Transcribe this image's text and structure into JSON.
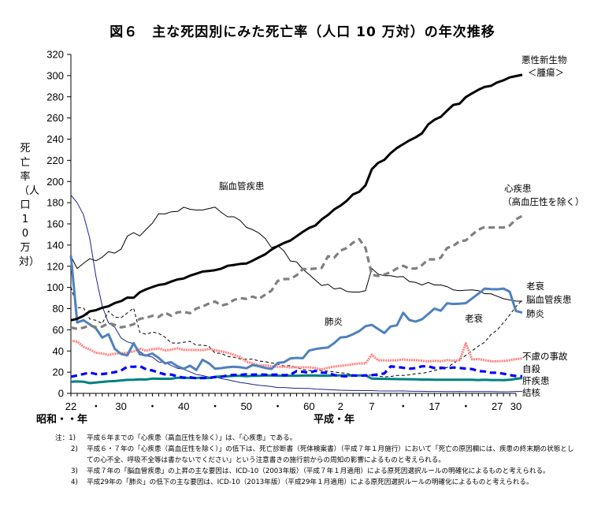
{
  "chart_data": {
    "type": "line",
    "title": "図６　主な死因別にみた死亡率（人口 10 万対）の年次推移",
    "ylabel": "死亡率（人口10万対）",
    "xlabel_showa": "昭和・・年",
    "xlabel_heisei": "平成・年",
    "ylim": [
      0,
      320
    ],
    "yticks": [
      0,
      20,
      40,
      60,
      80,
      100,
      120,
      140,
      160,
      180,
      200,
      220,
      240,
      260,
      280,
      300,
      320
    ],
    "xlim": [
      1947,
      2018
    ],
    "xtick_labels": [
      {
        "year": 1947,
        "label": "22"
      },
      {
        "year": 1951,
        "label": "・"
      },
      {
        "year": 1955,
        "label": "30"
      },
      {
        "year": 1960,
        "label": "・"
      },
      {
        "year": 1965,
        "label": "40"
      },
      {
        "year": 1970,
        "label": "・"
      },
      {
        "year": 1975,
        "label": "50"
      },
      {
        "year": 1980,
        "label": "・"
      },
      {
        "year": 1985,
        "label": "60"
      },
      {
        "year": 1990,
        "label": "2"
      },
      {
        "year": 1995,
        "label": "7"
      },
      {
        "year": 2000,
        "label": "・"
      },
      {
        "year": 2005,
        "label": "17"
      },
      {
        "year": 2010,
        "label": "・"
      },
      {
        "year": 2015,
        "label": "27"
      },
      {
        "year": 2018,
        "label": "30"
      }
    ],
    "grid": false,
    "annotations": [
      {
        "text": "脳血管疾患",
        "near": "1975, 195"
      },
      {
        "text": "肺炎",
        "near": "1989, 68"
      },
      {
        "text": "老衰",
        "near": "2010, 68"
      }
    ],
    "series": [
      {
        "name": "悪性新生物＜腫瘍＞",
        "label_lines": [
          "悪性新生物",
          "＜腫瘍＞"
        ],
        "color": "#000000",
        "style": "solid-thick",
        "x0": 1947,
        "values": [
          69.0,
          70.4,
          73.1,
          77.4,
          78.5,
          80.8,
          82.2,
          85.3,
          87.1,
          90.4,
          90.3,
          95.5,
          98.2,
          100.4,
          102.3,
          103.2,
          105.5,
          107.5,
          108.4,
          111.1,
          113.0,
          115.0,
          115.6,
          116.3,
          117.7,
          120.4,
          121.2,
          122.2,
          122.6,
          125.3,
          128.4,
          131.3,
          135.7,
          139.1,
          142.0,
          144.2,
          148.3,
          152.5,
          156.1,
          158.5,
          164.2,
          168.4,
          173.6,
          177.2,
          181.7,
          187.8,
          190.4,
          196.4,
          211.6,
          217.5,
          220.4,
          226.7,
          231.6,
          235.2,
          238.8,
          241.7,
          245.4,
          253.9,
          258.3,
          261.0,
          266.9,
          272.3,
          273.5,
          279.7,
          283.2,
          286.6,
          289.3,
          290.3,
          293.5,
          295.5,
          298.3,
          299.5,
          300.7
        ]
      },
      {
        "name": "心疾患（高血圧性を除く）",
        "label_lines": [
          "心疾患",
          "（高血圧性を除く）"
        ],
        "color": "#808080",
        "style": "dashed-thick",
        "x0": 1947,
        "values": [
          62.2,
          60.9,
          62.0,
          64.2,
          62.5,
          63.0,
          66.3,
          64.6,
          62.3,
          63.4,
          65.2,
          70.4,
          71.4,
          73.2,
          72.1,
          76.2,
          73.2,
          76.5,
          77.0,
          75.7,
          80.1,
          81.9,
          84.8,
          86.7,
          82.8,
          84.4,
          88.2,
          89.9,
          89.2,
          91.3,
          89.2,
          93.2,
          97.0,
          106.2,
          107.9,
          108.0,
          111.4,
          117.3,
          117.3,
          117.9,
          118.4,
          129.4,
          128.1,
          134.8,
          137.2,
          142.2,
          145.6,
          137.2,
          112.0,
          110.8,
          112.2,
          114.3,
          117.9,
          120.4,
          117.8,
          117.8,
          121.0,
          126.5,
          126.5,
          128.1,
          137.2,
          139.2,
          143.7,
          144.4,
          149.8,
          154.5,
          157.0,
          156.5,
          156.7,
          156.5,
          158.4,
          164.3,
          167.6
        ]
      },
      {
        "name": "脳血管疾患",
        "label_lines": [
          "脳血管疾患"
        ],
        "color": "#000000",
        "style": "solid-thin",
        "x0": 1947,
        "values": [
          129.4,
          117.9,
          122.7,
          127.1,
          125.2,
          128.5,
          133.7,
          132.4,
          136.1,
          148.4,
          151.7,
          148.6,
          154.8,
          160.7,
          169.6,
          169.4,
          171.4,
          171.7,
          175.8,
          173.8,
          173.1,
          173.1,
          174.4,
          175.8,
          170.8,
          166.7,
          166.7,
          163.2,
          156.7,
          154.5,
          151.4,
          146.2,
          137.7,
          139.5,
          134.3,
          125.0,
          124.1,
          117.2,
          112.2,
          106.9,
          101.7,
          103.0,
          98.5,
          99.4,
          96.2,
          95.6,
          95.6,
          96.9,
          117.9,
          112.6,
          111.0,
          111.0,
          110.0,
          110.2,
          105.5,
          104.7,
          102.3,
          104.7,
          102.3,
          102.3,
          100.8,
          97.7,
          97.0,
          97.4,
          97.7,
          97.0,
          94.1,
          94.1,
          91.7,
          89.4,
          88.2,
          87.1,
          87.1
        ]
      },
      {
        "name": "肺炎",
        "label_lines": [
          "肺炎"
        ],
        "color": "#4F81BD",
        "style": "solid-thick",
        "x0": 1947,
        "values": [
          130.1,
          66.9,
          69.0,
          65.1,
          61.3,
          52.6,
          55.9,
          42.0,
          37.2,
          35.9,
          47.5,
          37.0,
          35.7,
          37.6,
          33.5,
          28.3,
          29.4,
          25.5,
          23.2,
          26.1,
          22.0,
          31.7,
          28.4,
          23.3,
          23.8,
          24.6,
          25.1,
          24.6,
          23.7,
          26.8,
          25.6,
          24.0,
          23.1,
          28.7,
          29.4,
          33.0,
          33.5,
          33.2,
          40.4,
          41.8,
          42.7,
          43.2,
          47.5,
          52.8,
          53.3,
          55.8,
          58.8,
          63.4,
          64.7,
          60.9,
          56.9,
          63.1,
          64.2,
          76.1,
          69.2,
          67.8,
          69.9,
          74.9,
          80.0,
          78.0,
          85.0,
          84.4,
          84.6,
          85.1,
          89.6,
          94.1,
          98.9,
          98.4,
          98.2,
          98.9,
          96.0,
          77.7,
          76.2
        ]
      },
      {
        "name": "老衰",
        "label_lines": [
          "老衰"
        ],
        "color": "#000000",
        "style": "dashed-thin",
        "x0": 1947,
        "values": [
          100.3,
          81.0,
          80.8,
          70.2,
          68.9,
          66.0,
          77.6,
          72.0,
          71.4,
          75.9,
          80.6,
          57.5,
          55.8,
          57.9,
          56.6,
          53.1,
          47.6,
          47.3,
          48.3,
          49.1,
          45.4,
          45.6,
          44.4,
          38.1,
          37.7,
          34.9,
          34.0,
          32.6,
          32.2,
          32.3,
          30.5,
          29.9,
          28.7,
          27.6,
          25.9,
          26.3,
          24.3,
          22.5,
          21.6,
          21.5,
          21.6,
          20.9,
          20.2,
          19.4,
          18.8,
          17.5,
          17.0,
          17.4,
          17.2,
          16.3,
          15.6,
          15.9,
          16.9,
          16.9,
          17.5,
          18.6,
          18.9,
          20.1,
          21.5,
          23.1,
          24.3,
          28.3,
          32.0,
          35.9,
          40.2,
          44.6,
          48.2,
          55.5,
          59.8,
          66.7,
          74.0,
          81.9,
          88.2
        ]
      },
      {
        "name": "不慮の事故",
        "label_lines": [
          "不慮の事故"
        ],
        "color": "#FF8080",
        "style": "dotted-thick",
        "x0": 1947,
        "values": [
          49.6,
          49.0,
          44.0,
          41.4,
          38.3,
          37.6,
          36.4,
          37.4,
          37.9,
          38.3,
          39.6,
          42.2,
          40.1,
          41.7,
          42.4,
          40.5,
          41.2,
          42.6,
          40.9,
          41.0,
          40.9,
          40.8,
          41.9,
          40.8,
          39.6,
          38.4,
          36.3,
          34.2,
          29.9,
          28.2,
          26.4,
          26.4,
          25.6,
          25.1,
          25.1,
          24.5,
          24.6,
          24.5,
          24.6,
          23.9,
          22.6,
          24.1,
          25.3,
          26.0,
          26.6,
          27.5,
          28.2,
          28.2,
          36.5,
          31.2,
          31.1,
          31.1,
          31.2,
          32.0,
          31.4,
          31.4,
          30.7,
          30.2,
          30.7,
          30.3,
          31.4,
          30.7,
          31.2,
          47.1,
          32.0,
          32.3,
          31.3,
          30.3,
          30.2,
          30.6,
          31.3,
          32.4,
          33.0
        ]
      },
      {
        "name": "自殺",
        "label_lines": [
          "自殺"
        ],
        "color": "#0000FF",
        "style": "dashed-thick",
        "x0": 1947,
        "values": [
          15.7,
          16.9,
          18.2,
          19.6,
          18.2,
          18.2,
          18.9,
          20.0,
          21.5,
          25.2,
          25.1,
          25.7,
          22.7,
          21.6,
          19.6,
          17.9,
          17.7,
          16.1,
          14.7,
          15.2,
          14.2,
          14.5,
          14.5,
          15.3,
          15.6,
          17.0,
          17.4,
          17.5,
          18.0,
          17.6,
          17.9,
          17.6,
          17.6,
          17.7,
          17.1,
          17.5,
          21.0,
          20.4,
          19.4,
          21.3,
          19.6,
          19.4,
          17.3,
          16.4,
          16.1,
          16.9,
          16.6,
          16.9,
          17.2,
          17.8,
          18.8,
          25.4,
          25.0,
          24.1,
          23.3,
          23.8,
          25.5,
          25.5,
          24.0,
          24.2,
          23.7,
          24.4,
          24.0,
          23.4,
          22.9,
          21.0,
          20.7,
          19.5,
          19.5,
          18.5,
          17.3,
          16.4,
          16.1
        ]
      },
      {
        "name": "肝疾患",
        "label_lines": [
          "肝疾患"
        ],
        "color": "#008080",
        "style": "solid-thick",
        "x0": 1947,
        "values": [
          11.0,
          11.2,
          11.0,
          9.7,
          10.3,
          10.8,
          11.3,
          11.6,
          12.2,
          12.7,
          12.9,
          13.2,
          13.1,
          13.9,
          13.8,
          13.8,
          13.8,
          14.7,
          14.7,
          14.5,
          14.5,
          14.7,
          14.4,
          15.6,
          16.0,
          16.1,
          16.5,
          16.6,
          16.2,
          16.6,
          16.6,
          16.9,
          16.8,
          16.7,
          16.7,
          16.7,
          16.7,
          16.8,
          16.9,
          16.8,
          16.7,
          16.7,
          17.0,
          17.0,
          17.0,
          17.0,
          17.0,
          17.0,
          13.9,
          13.8,
          13.7,
          13.6,
          13.5,
          13.4,
          13.3,
          13.2,
          13.0,
          13.0,
          12.9,
          12.9,
          12.8,
          12.9,
          12.8,
          12.9,
          12.9,
          12.6,
          12.8,
          12.6,
          12.6,
          12.5,
          12.8,
          13.7,
          14.4
        ]
      },
      {
        "name": "結核",
        "label_lines": [
          "結核"
        ],
        "color": "#1F1F8F",
        "style": "solid-thin",
        "x0": 1947,
        "values": [
          187.2,
          179.9,
          168.8,
          146.4,
          110.3,
          82.2,
          66.5,
          62.4,
          52.3,
          48.6,
          46.9,
          39.4,
          35.5,
          34.2,
          29.6,
          29.3,
          26.3,
          23.6,
          22.8,
          20.3,
          17.8,
          16.8,
          15.4,
          15.4,
          13.9,
          12.8,
          11.5,
          10.3,
          9.5,
          8.5,
          7.6,
          7.1,
          6.4,
          5.5,
          5.5,
          5.1,
          4.8,
          4.7,
          4.6,
          4.0,
          3.8,
          3.6,
          3.3,
          3.0,
          2.8,
          2.7,
          2.7,
          2.6,
          2.6,
          2.3,
          2.2,
          2.2,
          2.2,
          2.3,
          2.1,
          1.9,
          1.9,
          1.8,
          1.8,
          1.8,
          1.7,
          1.7,
          1.8,
          1.7,
          1.7,
          1.7,
          1.7,
          1.7,
          1.6,
          1.5,
          1.6,
          1.8,
          1.8
        ]
      }
    ]
  },
  "notes": [
    {
      "key": "注：1)",
      "text": "平成６年までの「心疾患（高血圧性を除く）」は、「心疾患」である。"
    },
    {
      "key": "2)",
      "text": "平成６・７年の「心疾患（高血圧性を除く）」の低下は、死亡診断書（死体検案書）（平成７年１月施行）において「死亡の原因欄には、疾患の終末期の状態としての心不全、呼吸不全等は書かないでください」という注意書きの施行前からの周知の影響によるものと考えられる。"
    },
    {
      "key": "3)",
      "text": "平成７年の「脳血管疾患」の上昇の主な要因は、ICD-10（2003年版）（平成７年１月適用）による原死因選択ルールの明確化によるものと考えられる。"
    },
    {
      "key": "4)",
      "text": "平成29年の「肺炎」の低下の主な要因は、ICD-10（2013年版）（平成29年１月適用）による原死因選択ルールの明確化によるものと考えられる。"
    }
  ]
}
